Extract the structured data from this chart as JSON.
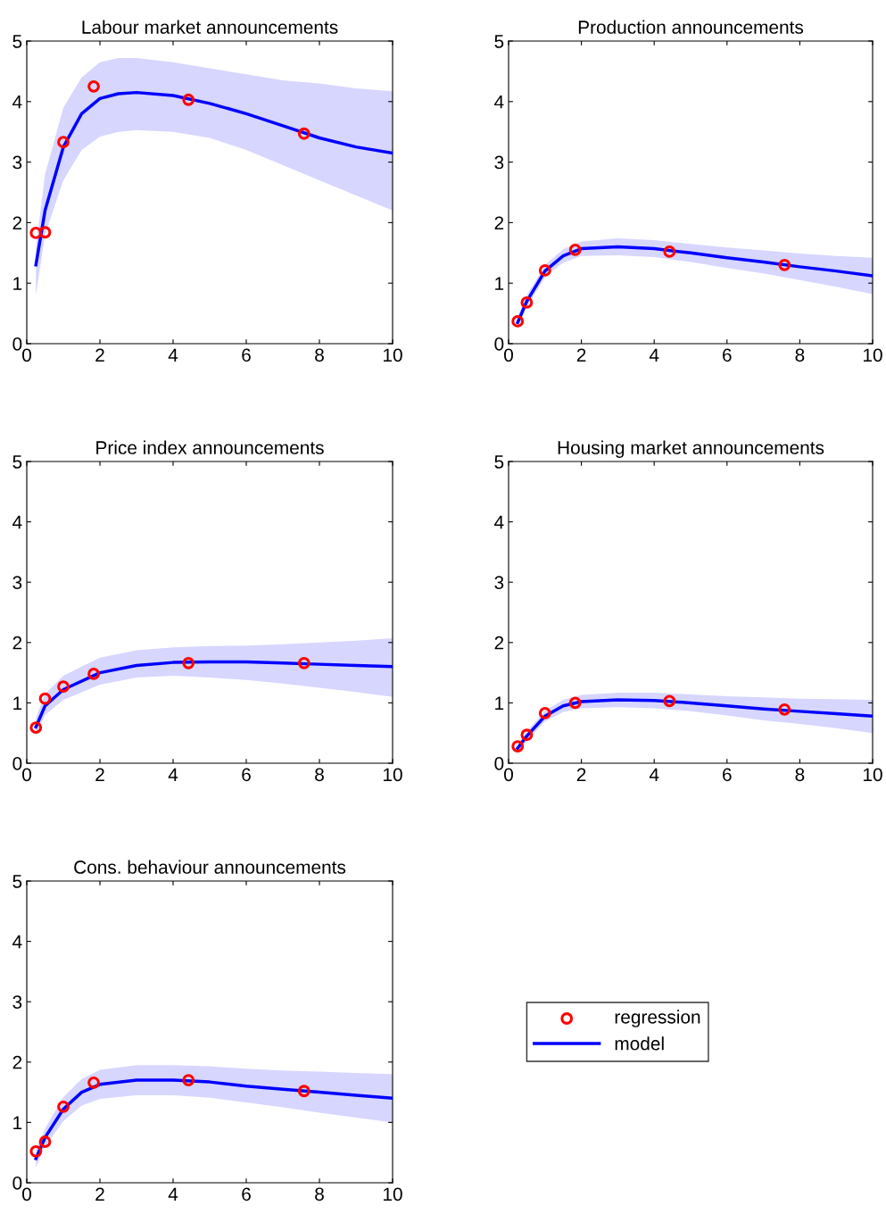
{
  "chart_data": [
    {
      "type": "line",
      "title": "Labour market announcements",
      "legend": "right",
      "xlim": [
        0,
        10
      ],
      "ylim": [
        0,
        5
      ],
      "xticks": [
        0,
        2,
        4,
        6,
        8,
        10
      ],
      "yticks": [
        0,
        1,
        2,
        3,
        4,
        5
      ],
      "series": [
        {
          "name": "regression",
          "type": "scatter",
          "marker": "circle",
          "color": "#ff0000",
          "x": [
            0.25,
            0.5,
            1,
            1.83,
            4.42,
            7.58
          ],
          "values": [
            1.83,
            1.84,
            3.33,
            4.25,
            4.03,
            3.47
          ]
        },
        {
          "name": "model",
          "type": "line",
          "color": "#0000ff",
          "x": [
            0.25,
            0.5,
            1,
            1.5,
            2,
            2.5,
            3,
            4,
            5,
            6,
            7,
            8,
            9,
            10
          ],
          "values": [
            1.3,
            2.2,
            3.25,
            3.8,
            4.05,
            4.13,
            4.15,
            4.1,
            3.97,
            3.8,
            3.6,
            3.4,
            3.25,
            3.15
          ],
          "upper": [
            1.6,
            2.8,
            3.9,
            4.4,
            4.65,
            4.72,
            4.72,
            4.65,
            4.55,
            4.45,
            4.35,
            4.3,
            4.22,
            4.17
          ],
          "lower": [
            0.8,
            1.8,
            2.7,
            3.2,
            3.42,
            3.5,
            3.53,
            3.5,
            3.4,
            3.2,
            2.95,
            2.7,
            2.45,
            2.2
          ]
        }
      ]
    },
    {
      "type": "line",
      "title": "Production announcements",
      "xlim": [
        0,
        10
      ],
      "ylim": [
        0,
        5
      ],
      "xticks": [
        0,
        2,
        4,
        6,
        8,
        10
      ],
      "yticks": [
        0,
        1,
        2,
        3,
        4,
        5
      ],
      "series": [
        {
          "type": "scatter",
          "marker": "circle",
          "color": "#ff0000",
          "x": [
            0.25,
            0.5,
            1,
            1.83,
            4.42,
            7.58
          ],
          "values": [
            0.37,
            0.68,
            1.21,
            1.55,
            1.52,
            1.3
          ]
        },
        {
          "type": "line",
          "color": "#0000ff",
          "x": [
            0.25,
            0.5,
            1,
            1.5,
            2,
            3,
            4,
            5,
            6,
            7,
            8,
            9,
            10
          ],
          "values": [
            0.35,
            0.7,
            1.2,
            1.45,
            1.57,
            1.6,
            1.57,
            1.5,
            1.42,
            1.35,
            1.27,
            1.2,
            1.12
          ],
          "upper": [
            0.45,
            0.8,
            1.3,
            1.56,
            1.69,
            1.74,
            1.71,
            1.65,
            1.59,
            1.54,
            1.49,
            1.45,
            1.42
          ],
          "lower": [
            0.25,
            0.6,
            1.1,
            1.34,
            1.45,
            1.46,
            1.43,
            1.35,
            1.25,
            1.16,
            1.05,
            0.94,
            0.82
          ]
        }
      ]
    },
    {
      "type": "line",
      "title": "Price index announcements",
      "xlim": [
        0,
        10
      ],
      "ylim": [
        0,
        5
      ],
      "xticks": [
        0,
        2,
        4,
        6,
        8,
        10
      ],
      "yticks": [
        0,
        1,
        2,
        3,
        4,
        5
      ],
      "series": [
        {
          "type": "scatter",
          "marker": "circle",
          "color": "#ff0000",
          "x": [
            0.25,
            0.5,
            1,
            1.83,
            4.42,
            7.58
          ],
          "values": [
            0.59,
            1.07,
            1.27,
            1.48,
            1.66,
            1.66
          ]
        },
        {
          "type": "line",
          "color": "#0000ff",
          "x": [
            0.25,
            0.5,
            1,
            2,
            3,
            4,
            5,
            6,
            7,
            8,
            9,
            10
          ],
          "values": [
            0.6,
            0.95,
            1.22,
            1.5,
            1.62,
            1.67,
            1.68,
            1.68,
            1.66,
            1.64,
            1.62,
            1.6
          ],
          "upper": [
            0.75,
            1.15,
            1.45,
            1.75,
            1.87,
            1.92,
            1.94,
            1.95,
            1.97,
            2.0,
            2.03,
            2.07
          ],
          "lower": [
            0.45,
            0.8,
            1.05,
            1.3,
            1.42,
            1.45,
            1.42,
            1.38,
            1.32,
            1.25,
            1.18,
            1.1
          ]
        }
      ]
    },
    {
      "type": "line",
      "title": "Housing market announcements",
      "xlim": [
        0,
        10
      ],
      "ylim": [
        0,
        5
      ],
      "xticks": [
        0,
        2,
        4,
        6,
        8,
        10
      ],
      "yticks": [
        0,
        1,
        2,
        3,
        4,
        5
      ],
      "series": [
        {
          "type": "scatter",
          "marker": "circle",
          "color": "#ff0000",
          "x": [
            0.25,
            0.5,
            1,
            1.83,
            4.42,
            7.58
          ],
          "values": [
            0.28,
            0.47,
            0.83,
            1.0,
            1.03,
            0.89
          ]
        },
        {
          "type": "line",
          "color": "#0000ff",
          "x": [
            0.25,
            0.5,
            1,
            1.5,
            2,
            3,
            4,
            5,
            6,
            7,
            8,
            9,
            10
          ],
          "values": [
            0.25,
            0.45,
            0.78,
            0.95,
            1.02,
            1.05,
            1.04,
            1.0,
            0.95,
            0.9,
            0.86,
            0.82,
            0.78
          ],
          "upper": [
            0.32,
            0.53,
            0.87,
            1.05,
            1.13,
            1.17,
            1.17,
            1.14,
            1.11,
            1.09,
            1.07,
            1.06,
            1.05
          ],
          "lower": [
            0.18,
            0.37,
            0.69,
            0.85,
            0.91,
            0.93,
            0.91,
            0.86,
            0.79,
            0.71,
            0.65,
            0.58,
            0.5
          ]
        }
      ]
    },
    {
      "type": "line",
      "title": "Cons. behaviour announcements",
      "xlim": [
        0,
        10
      ],
      "ylim": [
        0,
        5
      ],
      "xticks": [
        0,
        2,
        4,
        6,
        8,
        10
      ],
      "yticks": [
        0,
        1,
        2,
        3,
        4,
        5
      ],
      "series": [
        {
          "type": "scatter",
          "marker": "circle",
          "color": "#ff0000",
          "x": [
            0.25,
            0.5,
            1,
            1.83,
            4.42,
            7.58
          ],
          "values": [
            0.52,
            0.68,
            1.26,
            1.66,
            1.7,
            1.52
          ]
        },
        {
          "type": "line",
          "color": "#0000ff",
          "x": [
            0.25,
            0.5,
            1,
            1.5,
            2,
            3,
            4,
            5,
            6,
            7,
            8,
            9,
            10
          ],
          "values": [
            0.4,
            0.75,
            1.22,
            1.5,
            1.63,
            1.7,
            1.7,
            1.67,
            1.6,
            1.55,
            1.5,
            1.45,
            1.4
          ],
          "upper": [
            0.55,
            0.9,
            1.42,
            1.72,
            1.87,
            1.95,
            1.95,
            1.93,
            1.89,
            1.86,
            1.84,
            1.82,
            1.8
          ],
          "lower": [
            0.25,
            0.6,
            1.02,
            1.28,
            1.39,
            1.45,
            1.45,
            1.41,
            1.33,
            1.25,
            1.16,
            1.08,
            1.0
          ]
        }
      ]
    }
  ]
}
